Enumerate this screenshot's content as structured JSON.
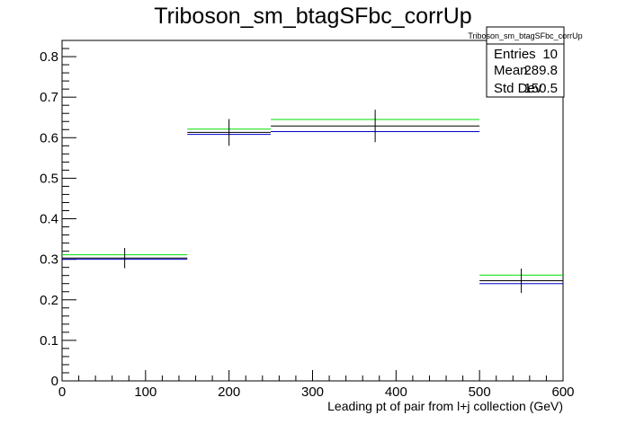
{
  "chart_data": {
    "type": "step",
    "title": "Triboson_sm_btagSFbc_corrUp",
    "xlabel": "Leading pt of pair from l+j collection (GeV)",
    "ylabel": "",
    "xlim": [
      0,
      600
    ],
    "ylim": [
      0,
      0.84
    ],
    "x_ticks": [
      0,
      100,
      200,
      300,
      400,
      500,
      600
    ],
    "y_ticks": [
      0,
      0.1,
      0.2,
      0.3,
      0.4,
      0.5,
      0.6,
      0.7,
      0.8
    ],
    "bins": [
      [
        0,
        150
      ],
      [
        150,
        250
      ],
      [
        250,
        500
      ],
      [
        500,
        600
      ]
    ],
    "series": [
      {
        "color": "#000000",
        "values": [
          0.303,
          0.613,
          0.629,
          0.247
        ],
        "errors": [
          0.025,
          0.033,
          0.04,
          0.03
        ]
      },
      {
        "color": "#0000cc",
        "values": [
          0.3,
          0.608,
          0.615,
          0.24
        ]
      },
      {
        "color": "#00dd00",
        "values": [
          0.311,
          0.621,
          0.645,
          0.261
        ]
      }
    ],
    "stats_box": {
      "title": "Triboson_sm_btagSFbc_corrUp",
      "rows": [
        {
          "label": "Entries",
          "value": "10"
        },
        {
          "label": "Mean",
          "value": "289.8"
        },
        {
          "label": "Std Dev",
          "value": "150.5"
        }
      ]
    },
    "grid": false,
    "legend": "stats box top-right"
  }
}
